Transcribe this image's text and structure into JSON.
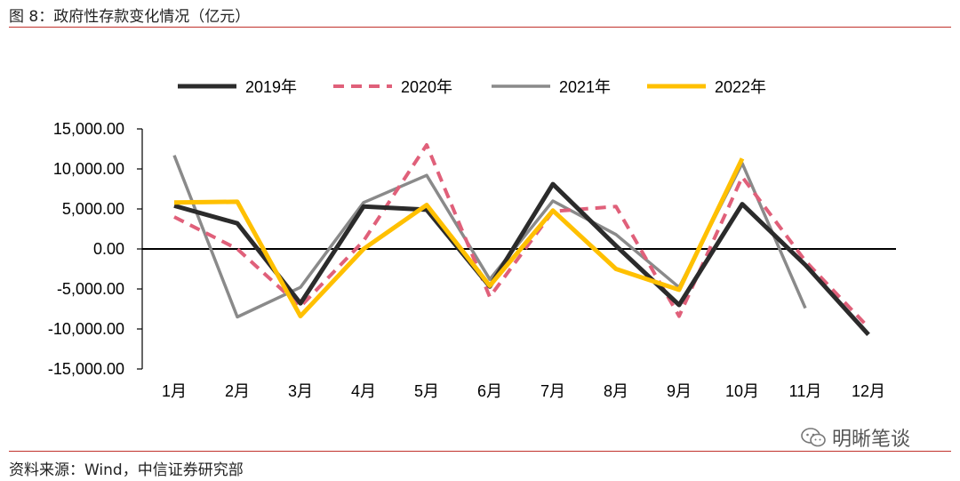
{
  "header": {
    "title": "图 8：政府性存款变化情况（亿元）"
  },
  "footer": {
    "source": "资料来源：Wind，中信证券研究部"
  },
  "watermark": {
    "text": "明晰笔谈",
    "icon": "wechat-icon"
  },
  "colors": {
    "accent_rule": "#c0312b",
    "series_2019": "#2b2b2b",
    "series_2020": "#e0607a",
    "series_2021": "#8a8a8a",
    "series_2022": "#ffc000"
  },
  "chart_data": {
    "type": "line",
    "title": "",
    "xlabel": "",
    "ylabel": "",
    "categories": [
      "1月",
      "2月",
      "3月",
      "4月",
      "5月",
      "6月",
      "7月",
      "8月",
      "9月",
      "10月",
      "11月",
      "12月"
    ],
    "ylim": [
      -15000,
      15000
    ],
    "yticks": [
      15000,
      10000,
      5000,
      0,
      -5000,
      -10000,
      -15000
    ],
    "ytick_labels": [
      "15,000.00",
      "10,000.00",
      "5,000.00",
      "0.00",
      "-5,000.00",
      "-10,000.00",
      "-15,000.00"
    ],
    "legend_position": "top",
    "grid": false,
    "series": [
      {
        "name": "2019年",
        "style": "solid",
        "values": [
          5400,
          3200,
          -6800,
          5300,
          4900,
          -4700,
          8100,
          400,
          -7000,
          5600,
          -2000,
          -10700
        ]
      },
      {
        "name": "2020年",
        "style": "dashed",
        "values": [
          4000,
          0,
          -7200,
          1000,
          13000,
          -6000,
          4700,
          5300,
          -8400,
          9000,
          -1500,
          -9800
        ]
      },
      {
        "name": "2021年",
        "style": "solid-thin",
        "values": [
          11700,
          -8500,
          -4800,
          5800,
          9200,
          -3800,
          6000,
          1800,
          -4800,
          10700,
          -7400,
          null
        ]
      },
      {
        "name": "2022年",
        "style": "solid",
        "values": [
          5800,
          5900,
          -8400,
          0,
          5500,
          -4600,
          4800,
          -2500,
          -5100,
          11300,
          null,
          null
        ]
      }
    ]
  }
}
